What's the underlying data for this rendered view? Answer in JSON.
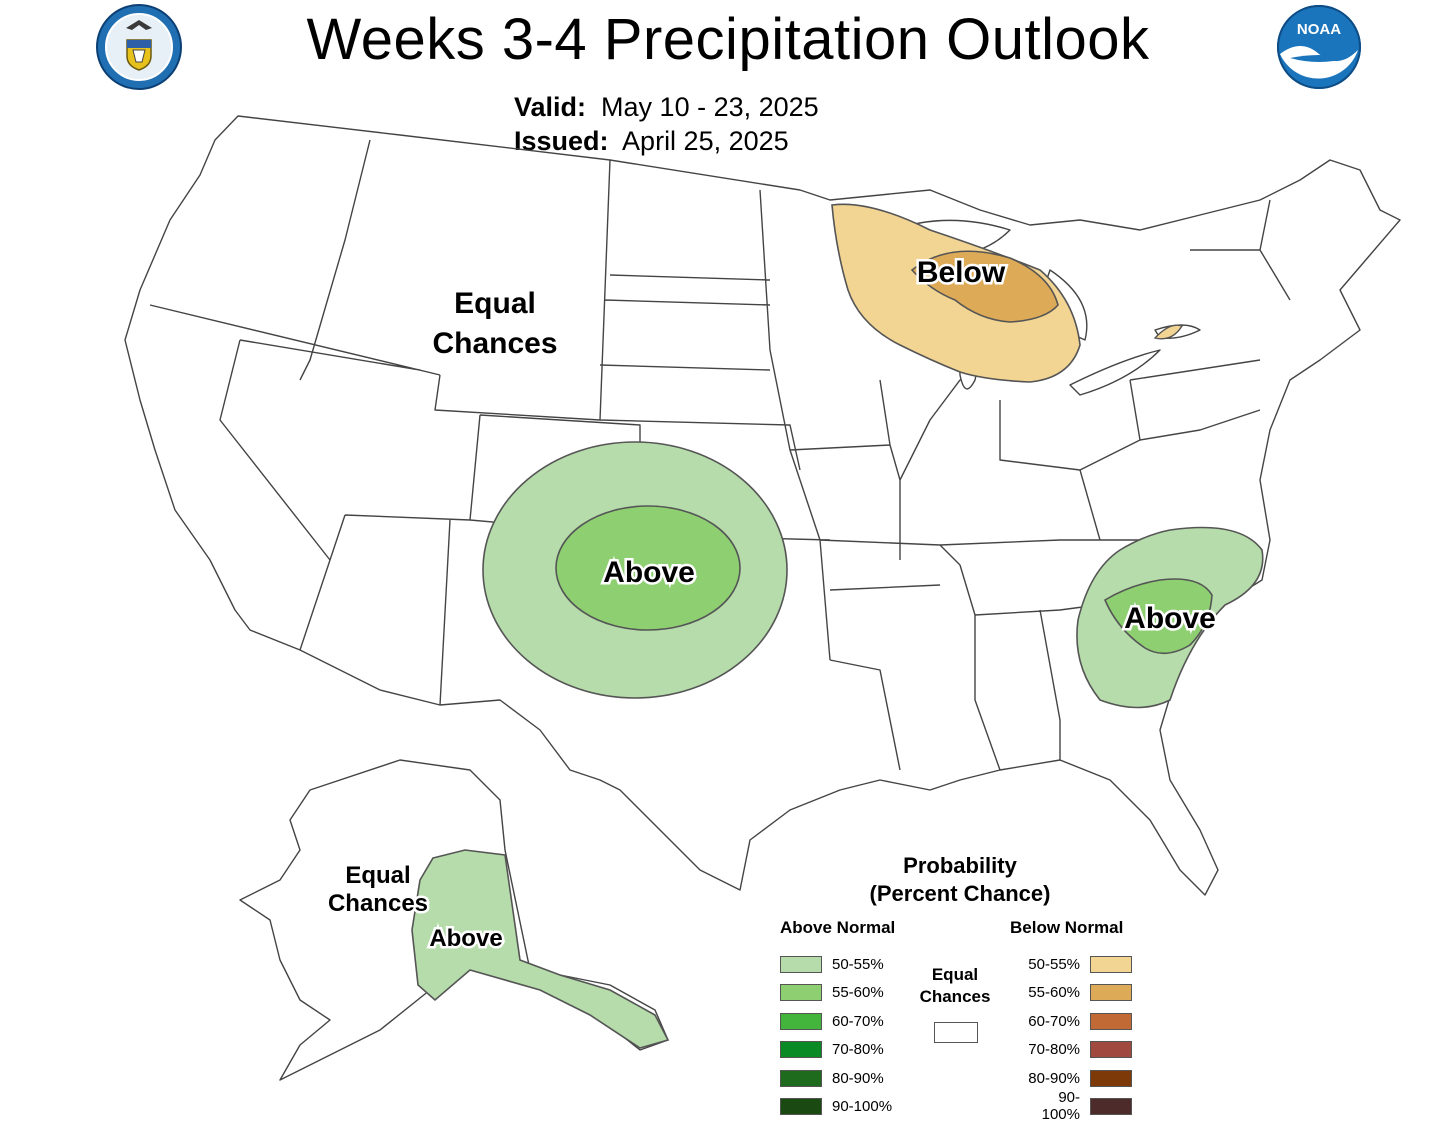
{
  "header": {
    "title": "Weeks 3-4 Precipitation Outlook",
    "valid_label": "Valid:",
    "valid_value": "May 10 - 23, 2025",
    "issued_label": "Issued:",
    "issued_value": "April 25, 2025"
  },
  "logos": {
    "left": "department-of-commerce-seal",
    "right": "noaa-logo",
    "noaa_text": "NOAA"
  },
  "map": {
    "labels": {
      "west_equal_line1": "Equal",
      "west_equal_line2": "Chances",
      "great_lakes_below": "Below",
      "plains_above": "Above",
      "southeast_above": "Above",
      "alaska_equal_line1": "Equal",
      "alaska_equal_line2": "Chances",
      "alaska_above": "Above"
    },
    "regions": [
      {
        "name": "Southern Plains",
        "category": "Above Normal",
        "probability": "50-55%"
      },
      {
        "name": "Southern Plains core",
        "category": "Above Normal",
        "probability": "55-60%"
      },
      {
        "name": "Southeast",
        "category": "Above Normal",
        "probability": "50-55%"
      },
      {
        "name": "Southeast core",
        "category": "Above Normal",
        "probability": "55-60%"
      },
      {
        "name": "Upper Great Lakes",
        "category": "Below Normal",
        "probability": "50-55%"
      },
      {
        "name": "Upper Great Lakes core",
        "category": "Below Normal",
        "probability": "55-60%"
      },
      {
        "name": "Southern Alaska",
        "category": "Above Normal",
        "probability": "50-55%"
      }
    ]
  },
  "legend": {
    "title_line1": "Probability",
    "title_line2": "(Percent Chance)",
    "above_header": "Above Normal",
    "below_header": "Below Normal",
    "equal_line1": "Equal",
    "equal_line2": "Chances",
    "above": [
      {
        "label": "50-55%",
        "color": "#b5dcaa"
      },
      {
        "label": "55-60%",
        "color": "#8ecf72"
      },
      {
        "label": "60-70%",
        "color": "#44b53c"
      },
      {
        "label": "70-80%",
        "color": "#0a8a25"
      },
      {
        "label": "80-90%",
        "color": "#1e6b1e"
      },
      {
        "label": "90-100%",
        "color": "#1a4a12"
      }
    ],
    "below": [
      {
        "label": "50-55%",
        "color": "#f2d493"
      },
      {
        "label": "55-60%",
        "color": "#ddaa57"
      },
      {
        "label": "60-70%",
        "color": "#c26a35"
      },
      {
        "label": "70-80%",
        "color": "#a04a3f"
      },
      {
        "label": "80-90%",
        "color": "#7e3908"
      },
      {
        "label": "90-100%",
        "color": "#4d2b2b"
      }
    ],
    "equal_color": "#ffffff"
  }
}
